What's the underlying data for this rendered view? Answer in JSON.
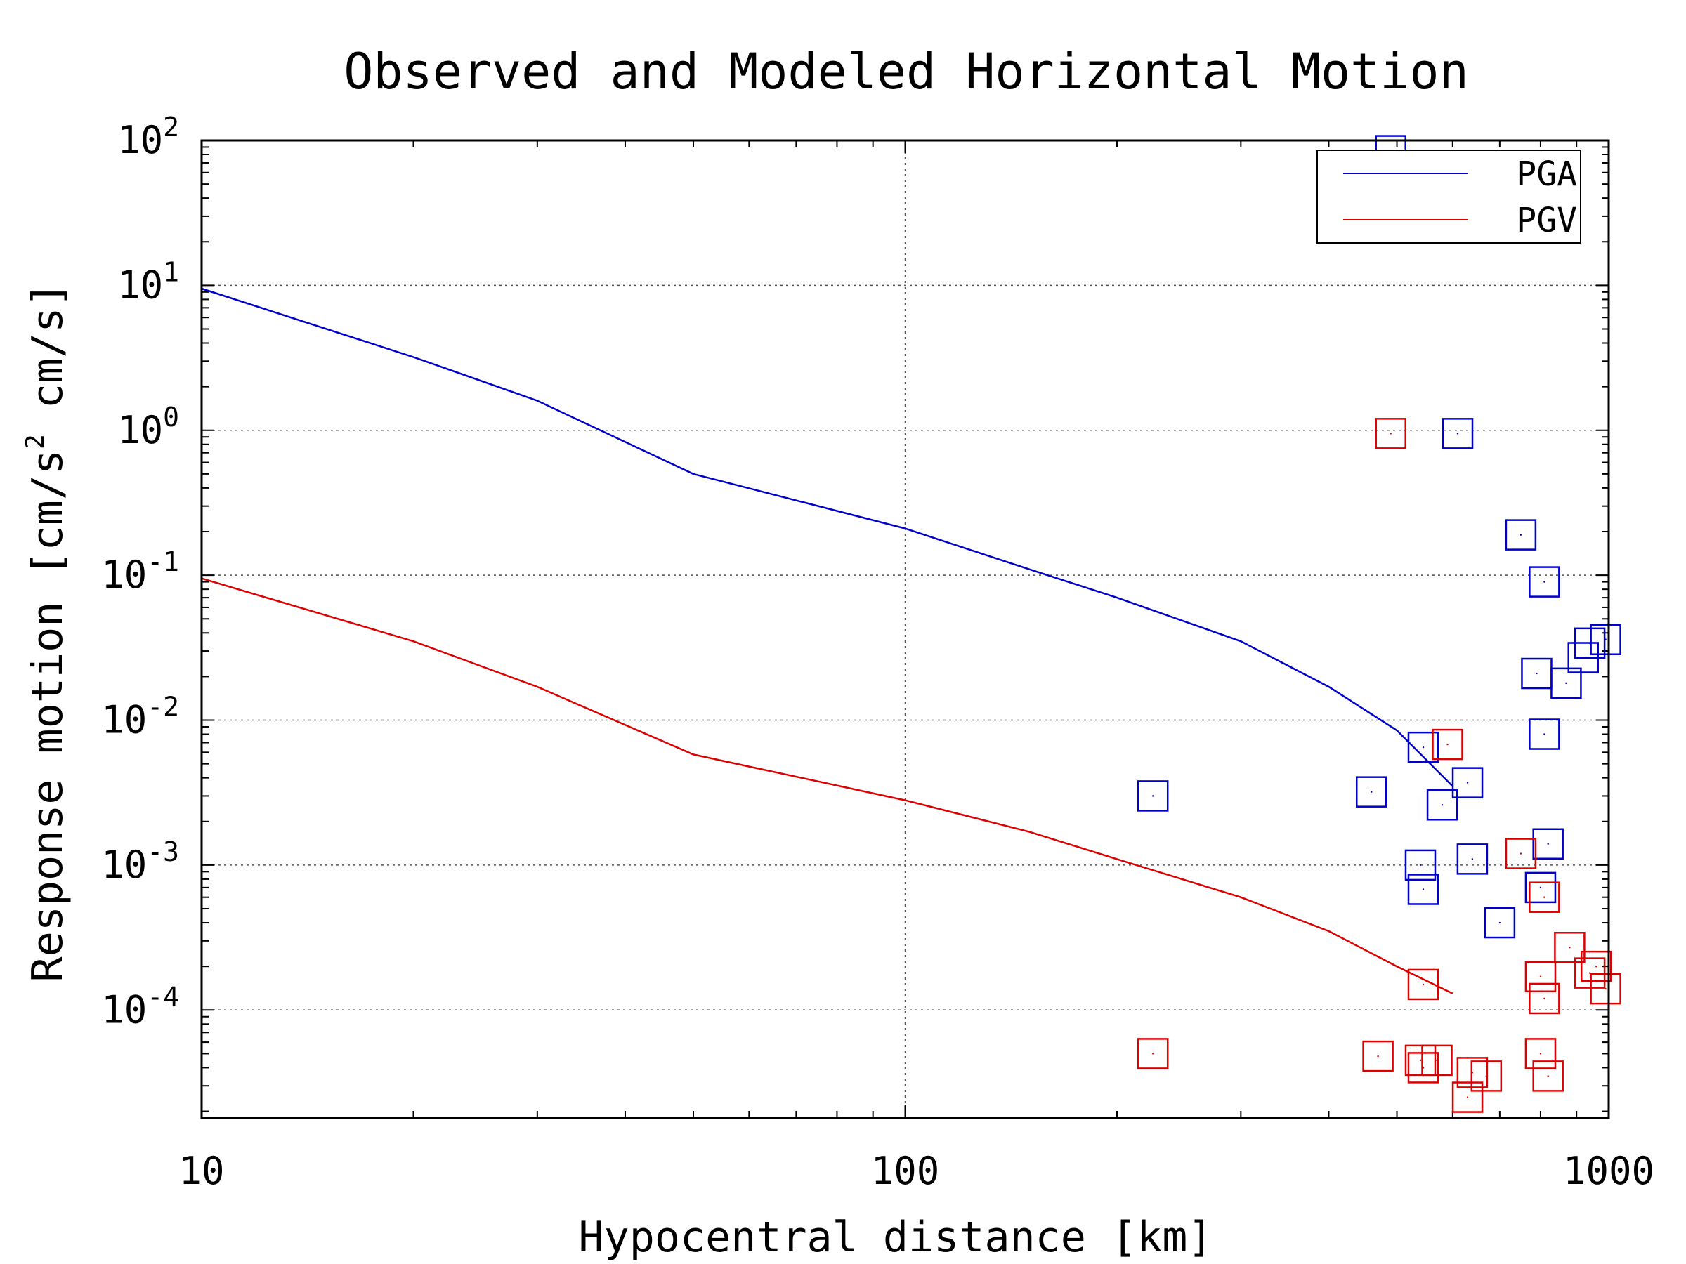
{
  "chart_data": {
    "type": "scatter",
    "title": "Observed and Modeled Horizontal Motion",
    "xlabel": "Hypocentral distance [km]",
    "ylabel_text": "Response motion [cm/s",
    "ylabel_sup": "2",
    "ylabel_tail": " cm/s]",
    "xscale": "log",
    "yscale": "log",
    "xlim": [
      10,
      1000
    ],
    "ylim": [
      1.8e-05,
      100
    ],
    "grid": true,
    "legend_position": "top-right",
    "x_ticks": [
      {
        "value": 10,
        "label": "10"
      },
      {
        "value": 100,
        "label": "100"
      },
      {
        "value": 1000,
        "label": "1000"
      }
    ],
    "y_ticks": [
      {
        "value": 0.0001,
        "base": "10",
        "exp": "-4"
      },
      {
        "value": 0.001,
        "base": "10",
        "exp": "-3"
      },
      {
        "value": 0.01,
        "base": "10",
        "exp": "-2"
      },
      {
        "value": 0.1,
        "base": "10",
        "exp": "-1"
      },
      {
        "value": 1,
        "base": "10",
        "exp": "0"
      },
      {
        "value": 10,
        "base": "10",
        "exp": "1"
      },
      {
        "value": 100,
        "base": "10",
        "exp": "2"
      }
    ],
    "series": [
      {
        "name": "PGA",
        "color": "#0000cc",
        "model": [
          {
            "x": 10,
            "y": 9.5
          },
          {
            "x": 20,
            "y": 3.2
          },
          {
            "x": 30,
            "y": 1.6
          },
          {
            "x": 50,
            "y": 0.5
          },
          {
            "x": 100,
            "y": 0.21
          },
          {
            "x": 150,
            "y": 0.11
          },
          {
            "x": 200,
            "y": 0.07
          },
          {
            "x": 300,
            "y": 0.035
          },
          {
            "x": 400,
            "y": 0.017
          },
          {
            "x": 500,
            "y": 0.0085
          },
          {
            "x": 600,
            "y": 0.0035
          }
        ],
        "observed": [
          {
            "x": 490,
            "y": 85
          },
          {
            "x": 610,
            "y": 0.95
          },
          {
            "x": 750,
            "y": 0.19
          },
          {
            "x": 810,
            "y": 0.09
          },
          {
            "x": 940,
            "y": 0.034
          },
          {
            "x": 990,
            "y": 0.036
          },
          {
            "x": 920,
            "y": 0.027
          },
          {
            "x": 790,
            "y": 0.021
          },
          {
            "x": 870,
            "y": 0.018
          },
          {
            "x": 810,
            "y": 0.008
          },
          {
            "x": 545,
            "y": 0.0065
          },
          {
            "x": 630,
            "y": 0.0037
          },
          {
            "x": 580,
            "y": 0.0026
          },
          {
            "x": 460,
            "y": 0.0032
          },
          {
            "x": 225,
            "y": 0.003
          },
          {
            "x": 820,
            "y": 0.0014
          },
          {
            "x": 640,
            "y": 0.0011
          },
          {
            "x": 540,
            "y": 0.001
          },
          {
            "x": 800,
            "y": 0.0007
          },
          {
            "x": 545,
            "y": 0.00068
          },
          {
            "x": 700,
            "y": 0.0004
          }
        ]
      },
      {
        "name": "PGV",
        "color": "#dd0000",
        "model": [
          {
            "x": 10,
            "y": 0.095
          },
          {
            "x": 20,
            "y": 0.035
          },
          {
            "x": 30,
            "y": 0.017
          },
          {
            "x": 50,
            "y": 0.0058
          },
          {
            "x": 100,
            "y": 0.0028
          },
          {
            "x": 150,
            "y": 0.0017
          },
          {
            "x": 200,
            "y": 0.0011
          },
          {
            "x": 300,
            "y": 0.0006
          },
          {
            "x": 400,
            "y": 0.00035
          },
          {
            "x": 500,
            "y": 0.0002
          },
          {
            "x": 600,
            "y": 0.00013
          }
        ],
        "observed": [
          {
            "x": 490,
            "y": 0.95
          },
          {
            "x": 590,
            "y": 0.0068
          },
          {
            "x": 750,
            "y": 0.0012
          },
          {
            "x": 810,
            "y": 0.0006
          },
          {
            "x": 880,
            "y": 0.00027
          },
          {
            "x": 960,
            "y": 0.0002
          },
          {
            "x": 940,
            "y": 0.00018
          },
          {
            "x": 800,
            "y": 0.00017
          },
          {
            "x": 990,
            "y": 0.00014
          },
          {
            "x": 545,
            "y": 0.00015
          },
          {
            "x": 810,
            "y": 0.00012
          },
          {
            "x": 225,
            "y": 5e-05
          },
          {
            "x": 470,
            "y": 4.8e-05
          },
          {
            "x": 800,
            "y": 5e-05
          },
          {
            "x": 540,
            "y": 4.5e-05
          },
          {
            "x": 570,
            "y": 4.5e-05
          },
          {
            "x": 545,
            "y": 4e-05
          },
          {
            "x": 640,
            "y": 3.7e-05
          },
          {
            "x": 670,
            "y": 3.5e-05
          },
          {
            "x": 820,
            "y": 3.5e-05
          },
          {
            "x": 630,
            "y": 2.5e-05
          }
        ]
      }
    ]
  }
}
